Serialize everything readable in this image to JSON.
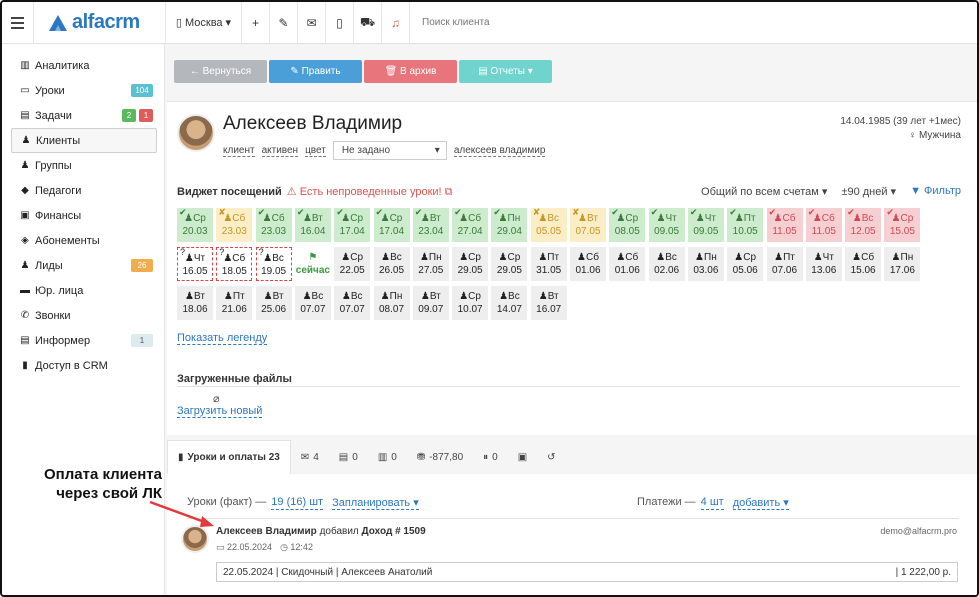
{
  "app": {
    "logo": "alfacrm"
  },
  "topbar": {
    "city": "Москва",
    "search_placeholder": "Поиск клиента"
  },
  "sidebar": {
    "items": [
      {
        "label": "Аналитика"
      },
      {
        "label": "Уроки",
        "badge": "104"
      },
      {
        "label": "Задачи",
        "badge1": "2",
        "badge2": "1"
      },
      {
        "label": "Клиенты"
      },
      {
        "label": "Группы"
      },
      {
        "label": "Педагоги"
      },
      {
        "label": "Финансы"
      },
      {
        "label": "Абонементы"
      },
      {
        "label": "Лиды",
        "badge": "26"
      },
      {
        "label": "Юр. лица"
      },
      {
        "label": "Звонки"
      },
      {
        "label": "Информер",
        "badge": "1"
      },
      {
        "label": "Доступ в CRM"
      }
    ]
  },
  "toolbar": {
    "back": "← Вернуться",
    "edit": "✎ Править",
    "archive": "🗑 В архив",
    "reports": "▤ Отчеты ▾"
  },
  "client": {
    "name": "Алексеев Владимир",
    "tag_client": "клиент",
    "tag_active": "активен",
    "tag_color": "цвет",
    "status_select": "Не задано",
    "login": "алексеев владимир",
    "birth": "14.04.1985 (39 лет +1мес)",
    "gender": "♀ Мужчина"
  },
  "widget": {
    "title": "Виджет посещений",
    "warning": "⚠ Есть непроведенные уроки! ⧉",
    "accounts": "Общий по всем счетам ▾",
    "range": "±90 дней ▾",
    "filter": "▼ Фильтр"
  },
  "attendance": [
    {
      "day": "Ср",
      "date": "20.03",
      "s": "g"
    },
    {
      "day": "Сб",
      "date": "23.03",
      "s": "y"
    },
    {
      "day": "Сб",
      "date": "23.03",
      "s": "g"
    },
    {
      "day": "Вт",
      "date": "16.04",
      "s": "g"
    },
    {
      "day": "Ср",
      "date": "17.04",
      "s": "g"
    },
    {
      "day": "Ср",
      "date": "17.04",
      "s": "g"
    },
    {
      "day": "Вт",
      "date": "23.04",
      "s": "g"
    },
    {
      "day": "Сб",
      "date": "27.04",
      "s": "g"
    },
    {
      "day": "Пн",
      "date": "29.04",
      "s": "g"
    },
    {
      "day": "Вс",
      "date": "05.05",
      "s": "y"
    },
    {
      "day": "Вт",
      "date": "07.05",
      "s": "y"
    },
    {
      "day": "Ср",
      "date": "08.05",
      "s": "g"
    },
    {
      "day": "Чт",
      "date": "09.05",
      "s": "g"
    },
    {
      "day": "Чт",
      "date": "09.05",
      "s": "g"
    },
    {
      "day": "Пт",
      "date": "10.05",
      "s": "g"
    },
    {
      "day": "Сб",
      "date": "11.05",
      "s": "r"
    },
    {
      "day": "Сб",
      "date": "11.05",
      "s": "r"
    },
    {
      "day": "Вс",
      "date": "12.05",
      "s": "r"
    },
    {
      "day": "Ср",
      "date": "15.05",
      "s": "r"
    },
    {
      "day": "Чт",
      "date": "16.05",
      "s": "d"
    },
    {
      "day": "Сб",
      "date": "18.05",
      "s": "d"
    },
    {
      "day": "Вс",
      "date": "19.05",
      "s": "d"
    },
    {
      "day": "",
      "date": "сейчас",
      "s": "now"
    },
    {
      "day": "Ср",
      "date": "22.05",
      "s": "n"
    },
    {
      "day": "Вс",
      "date": "26.05",
      "s": "n"
    },
    {
      "day": "Пн",
      "date": "27.05",
      "s": "n"
    },
    {
      "day": "Ср",
      "date": "29.05",
      "s": "n"
    },
    {
      "day": "Ср",
      "date": "29.05",
      "s": "n"
    },
    {
      "day": "Пт",
      "date": "31.05",
      "s": "n"
    },
    {
      "day": "Сб",
      "date": "01.06",
      "s": "n"
    },
    {
      "day": "Сб",
      "date": "01.06",
      "s": "n"
    },
    {
      "day": "Вс",
      "date": "02.06",
      "s": "n"
    },
    {
      "day": "Пн",
      "date": "03.06",
      "s": "n"
    },
    {
      "day": "Ср",
      "date": "05.06",
      "s": "n"
    },
    {
      "day": "Пт",
      "date": "07.06",
      "s": "n"
    },
    {
      "day": "Чт",
      "date": "13.06",
      "s": "n"
    },
    {
      "day": "Сб",
      "date": "15.06",
      "s": "n"
    },
    {
      "day": "Пн",
      "date": "17.06",
      "s": "n"
    },
    {
      "day": "Вт",
      "date": "18.06",
      "s": "n"
    },
    {
      "day": "Пт",
      "date": "21.06",
      "s": "n"
    },
    {
      "day": "Вт",
      "date": "25.06",
      "s": "n"
    },
    {
      "day": "Вс",
      "date": "07.07",
      "s": "n"
    },
    {
      "day": "Вс",
      "date": "07.07",
      "s": "n"
    },
    {
      "day": "Пн",
      "date": "08.07",
      "s": "n"
    },
    {
      "day": "Вт",
      "date": "09.07",
      "s": "n"
    },
    {
      "day": "Ср",
      "date": "10.07",
      "s": "n"
    },
    {
      "day": "Вс",
      "date": "14.07",
      "s": "n"
    },
    {
      "day": "Вт",
      "date": "16.07",
      "s": "n"
    }
  ],
  "legend_link": "Показать легенду",
  "files": {
    "title": "Загруженные файлы",
    "upload": "Загрузить новый"
  },
  "tabs": [
    {
      "label": "Уроки и оплаты 23",
      "icon": "▮"
    },
    {
      "label": "4",
      "icon": "✉"
    },
    {
      "label": "0",
      "icon": "▤"
    },
    {
      "label": "0",
      "icon": "▥"
    },
    {
      "label": "-877,80",
      "icon": "⛃"
    },
    {
      "label": "0",
      "icon": "⏸"
    },
    {
      "label": "",
      "icon": "▣"
    },
    {
      "label": "",
      "icon": "↺"
    }
  ],
  "lessons": {
    "fact_label": "Уроки (факт) —",
    "fact_value": "19 (16) шт",
    "plan": "Запланировать ▾",
    "payments_label": "Платежи —",
    "payments_value": "4 шт",
    "add": "добавить ▾"
  },
  "entry": {
    "author": "Алексеев Владимир",
    "action": "добавил",
    "item": "Доход # 1509",
    "date": "22.05.2024",
    "time": "12:42",
    "email": "demo@alfacrm.pro",
    "row_left": "22.05.2024 | Скидочный | Алексеев Анатолий",
    "row_right": "| 1 222,00 р."
  },
  "annotation": {
    "line1": "Оплата клиента",
    "line2": "через свой ЛК"
  },
  "colors": {
    "accent": "#2b77c0",
    "green": "#cdeccd",
    "yellow": "#fbeec7",
    "red": "#f6cfd2"
  }
}
